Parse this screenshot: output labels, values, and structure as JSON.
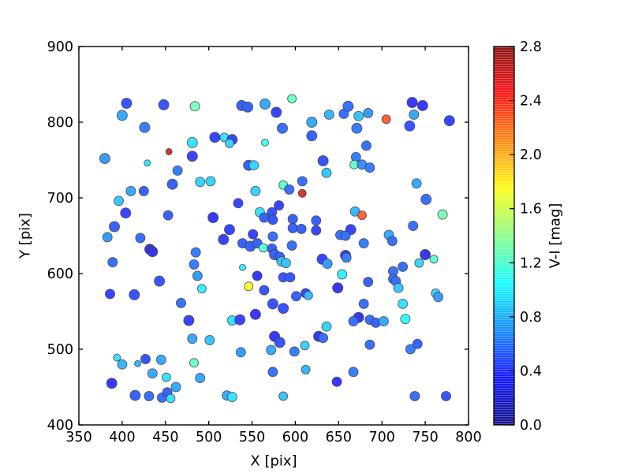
{
  "chart_data": {
    "type": "scatter",
    "title": "",
    "xlabel": "X [pix]",
    "ylabel": "Y [pix]",
    "xlim": [
      350,
      800
    ],
    "ylim": [
      400,
      900
    ],
    "xticks": [
      350,
      400,
      450,
      500,
      550,
      600,
      650,
      700,
      750,
      800
    ],
    "yticks": [
      400,
      500,
      600,
      700,
      800,
      900
    ],
    "grid": false,
    "legend": "none",
    "tick_direction": "in",
    "colorbar": {
      "label": "V-I [mag]",
      "vmin": 0.0,
      "vmax": 2.8,
      "ticks": [
        0.0,
        0.4,
        0.8,
        1.2,
        1.6,
        2.0,
        2.4,
        2.8
      ],
      "colormap": "jet",
      "position": "right"
    },
    "point_format": [
      "x_pix",
      "y_pix",
      "v_i_mag",
      "marker_diameter_px"
    ],
    "points": [
      [
        405,
        825,
        0.45,
        13
      ],
      [
        400,
        809,
        0.75,
        13
      ],
      [
        448,
        823,
        0.45,
        13
      ],
      [
        484,
        821,
        1.3,
        12
      ],
      [
        426,
        793,
        0.6,
        13
      ],
      [
        481,
        773,
        0.95,
        13
      ],
      [
        454,
        761,
        2.65,
        8
      ],
      [
        481,
        755,
        0.4,
        13
      ],
      [
        380,
        752,
        0.7,
        13
      ],
      [
        429,
        746,
        0.95,
        8
      ],
      [
        464,
        736,
        0.6,
        12
      ],
      [
        538,
        822,
        0.5,
        13
      ],
      [
        545,
        820,
        0.5,
        13
      ],
      [
        565,
        824,
        0.75,
        13
      ],
      [
        596,
        831,
        1.25,
        11
      ],
      [
        578,
        813,
        0.4,
        13
      ],
      [
        585,
        792,
        0.55,
        13
      ],
      [
        619,
        800,
        0.75,
        13
      ],
      [
        639,
        810,
        0.8,
        12
      ],
      [
        656,
        811,
        0.55,
        12
      ],
      [
        619,
        782,
        0.5,
        13
      ],
      [
        507,
        780,
        0.4,
        13
      ],
      [
        518,
        780,
        0.95,
        11
      ],
      [
        527,
        777,
        0.4,
        13
      ],
      [
        524,
        772,
        0.9,
        11
      ],
      [
        565,
        773,
        1.1,
        9
      ],
      [
        546,
        743,
        0.5,
        13
      ],
      [
        552,
        743,
        0.9,
        12
      ],
      [
        632,
        749,
        0.45,
        13
      ],
      [
        636,
        733,
        0.85,
        12
      ],
      [
        661,
        821,
        0.55,
        13
      ],
      [
        673,
        808,
        0.85,
        12
      ],
      [
        684,
        812,
        0.7,
        12
      ],
      [
        671,
        792,
        0.6,
        13
      ],
      [
        705,
        804,
        2.3,
        11
      ],
      [
        735,
        826,
        0.35,
        13
      ],
      [
        747,
        822,
        0.35,
        13
      ],
      [
        737,
        810,
        0.75,
        12
      ],
      [
        732,
        795,
        0.45,
        13
      ],
      [
        778,
        802,
        0.4,
        13
      ],
      [
        682,
        769,
        0.55,
        12
      ],
      [
        670,
        754,
        0.6,
        12
      ],
      [
        668,
        744,
        1.2,
        11
      ],
      [
        677,
        744,
        0.65,
        12
      ],
      [
        686,
        740,
        0.6,
        12
      ],
      [
        458,
        718,
        0.5,
        13
      ],
      [
        490,
        721,
        0.9,
        12
      ],
      [
        410,
        709,
        0.75,
        12
      ],
      [
        425,
        709,
        0.5,
        12
      ],
      [
        396,
        696,
        0.85,
        12
      ],
      [
        404,
        680,
        0.4,
        13
      ],
      [
        453,
        677,
        0.5,
        12
      ],
      [
        391,
        662,
        0.5,
        13
      ],
      [
        383,
        648,
        0.7,
        12
      ],
      [
        421,
        647,
        0.55,
        12
      ],
      [
        432,
        632,
        0.25,
        13
      ],
      [
        435,
        629,
        0.25,
        13
      ],
      [
        389,
        615,
        0.55,
        12
      ],
      [
        485,
        628,
        0.6,
        12
      ],
      [
        483,
        612,
        0.6,
        12
      ],
      [
        487,
        597,
        0.7,
        12
      ],
      [
        443,
        590,
        0.45,
        13
      ],
      [
        386,
        573,
        0.4,
        12
      ],
      [
        414,
        572,
        0.45,
        13
      ],
      [
        492,
        580,
        1.0,
        11
      ],
      [
        502,
        722,
        0.9,
        12
      ],
      [
        554,
        709,
        0.9,
        12
      ],
      [
        586,
        717,
        1.2,
        11
      ],
      [
        593,
        711,
        0.55,
        12
      ],
      [
        608,
        722,
        0.55,
        12
      ],
      [
        608,
        706,
        2.6,
        10
      ],
      [
        534,
        693,
        0.4,
        12
      ],
      [
        505,
        674,
        0.35,
        13
      ],
      [
        559,
        681,
        0.95,
        12
      ],
      [
        564,
        674,
        0.5,
        12
      ],
      [
        581,
        690,
        0.4,
        12
      ],
      [
        573,
        681,
        0.45,
        12
      ],
      [
        574,
        671,
        0.45,
        12
      ],
      [
        597,
        672,
        0.5,
        12
      ],
      [
        624,
        670,
        0.5,
        12
      ],
      [
        597,
        660,
        0.5,
        12
      ],
      [
        607,
        659,
        0.5,
        12
      ],
      [
        624,
        657,
        0.4,
        12
      ],
      [
        524,
        658,
        0.4,
        13
      ],
      [
        551,
        652,
        0.4,
        12
      ],
      [
        517,
        645,
        0.4,
        13
      ],
      [
        574,
        649,
        0.55,
        12
      ],
      [
        539,
        640,
        0.5,
        12
      ],
      [
        548,
        636,
        0.5,
        13
      ],
      [
        556,
        640,
        0.5,
        12
      ],
      [
        563,
        634,
        1.2,
        11
      ],
      [
        573,
        633,
        0.5,
        12
      ],
      [
        576,
        625,
        0.5,
        13
      ],
      [
        582,
        622,
        0.5,
        12
      ],
      [
        596,
        637,
        0.55,
        12
      ],
      [
        584,
        616,
        0.85,
        12
      ],
      [
        589,
        614,
        0.85,
        12
      ],
      [
        539,
        608,
        1.0,
        8
      ],
      [
        556,
        597,
        0.35,
        12
      ],
      [
        586,
        595,
        0.45,
        12
      ],
      [
        594,
        595,
        0.45,
        12
      ],
      [
        546,
        583,
        1.75,
        11
      ],
      [
        564,
        578,
        0.45,
        12
      ],
      [
        601,
        570,
        0.5,
        12
      ],
      [
        612,
        574,
        0.4,
        12
      ],
      [
        615,
        571,
        0.8,
        11
      ],
      [
        740,
        719,
        0.75,
        12
      ],
      [
        751,
        698,
        0.55,
        13
      ],
      [
        669,
        682,
        0.8,
        12
      ],
      [
        677,
        677,
        2.3,
        11
      ],
      [
        770,
        678,
        1.3,
        12
      ],
      [
        664,
        658,
        0.4,
        13
      ],
      [
        736,
        663,
        0.55,
        12
      ],
      [
        679,
        640,
        0.6,
        12
      ],
      [
        708,
        651,
        0.75,
        12
      ],
      [
        712,
        643,
        0.55,
        12
      ],
      [
        652,
        651,
        0.55,
        12
      ],
      [
        658,
        650,
        0.55,
        12
      ],
      [
        658,
        624,
        0.35,
        13
      ],
      [
        659,
        621,
        0.6,
        12
      ],
      [
        631,
        619,
        0.4,
        13
      ],
      [
        637,
        613,
        0.7,
        12
      ],
      [
        654,
        599,
        1.0,
        12
      ],
      [
        750,
        625,
        0.25,
        13
      ],
      [
        760,
        619,
        1.2,
        10
      ],
      [
        743,
        614,
        0.9,
        11
      ],
      [
        724,
        609,
        0.55,
        12
      ],
      [
        713,
        603,
        0.55,
        12
      ],
      [
        713,
        593,
        0.55,
        12
      ],
      [
        649,
        581,
        0.3,
        13
      ],
      [
        684,
        589,
        0.5,
        12
      ],
      [
        716,
        590,
        0.55,
        12
      ],
      [
        719,
        581,
        0.85,
        12
      ],
      [
        762,
        574,
        0.9,
        11
      ],
      [
        765,
        569,
        0.7,
        12
      ],
      [
        468,
        561,
        0.55,
        12
      ],
      [
        477,
        538,
        0.4,
        13
      ],
      [
        481,
        514,
        0.75,
        12
      ],
      [
        394,
        489,
        0.95,
        9
      ],
      [
        400,
        480,
        0.8,
        12
      ],
      [
        418,
        481,
        0.8,
        8
      ],
      [
        427,
        487,
        0.45,
        12
      ],
      [
        445,
        486,
        0.75,
        12
      ],
      [
        483,
        482,
        1.25,
        11
      ],
      [
        435,
        468,
        0.75,
        12
      ],
      [
        451,
        463,
        0.95,
        11
      ],
      [
        388,
        455,
        0.35,
        13
      ],
      [
        490,
        462,
        0.75,
        12
      ],
      [
        415,
        439,
        0.5,
        13
      ],
      [
        431,
        438,
        0.55,
        12
      ],
      [
        446,
        436,
        0.55,
        12
      ],
      [
        452,
        443,
        0.5,
        12
      ],
      [
        456,
        435,
        0.95,
        11
      ],
      [
        462,
        450,
        0.75,
        12
      ],
      [
        574,
        560,
        0.45,
        13
      ],
      [
        586,
        554,
        0.45,
        13
      ],
      [
        554,
        546,
        0.35,
        13
      ],
      [
        527,
        538,
        0.95,
        12
      ],
      [
        536,
        539,
        0.4,
        13
      ],
      [
        501,
        512,
        0.85,
        12
      ],
      [
        636,
        530,
        0.9,
        12
      ],
      [
        576,
        517,
        0.35,
        13
      ],
      [
        582,
        509,
        0.45,
        13
      ],
      [
        572,
        499,
        0.75,
        12
      ],
      [
        537,
        496,
        0.7,
        12
      ],
      [
        599,
        497,
        0.6,
        12
      ],
      [
        611,
        505,
        0.9,
        11
      ],
      [
        627,
        517,
        0.35,
        13
      ],
      [
        632,
        515,
        0.55,
        12
      ],
      [
        574,
        470,
        0.55,
        12
      ],
      [
        612,
        473,
        0.8,
        11
      ],
      [
        648,
        457,
        0.35,
        12
      ],
      [
        521,
        439,
        0.75,
        12
      ],
      [
        527,
        437,
        0.95,
        12
      ],
      [
        586,
        438,
        0.85,
        11
      ],
      [
        679,
        560,
        0.55,
        12
      ],
      [
        724,
        560,
        0.95,
        12
      ],
      [
        673,
        542,
        0.3,
        13
      ],
      [
        667,
        537,
        0.55,
        12
      ],
      [
        686,
        539,
        0.55,
        12
      ],
      [
        693,
        535,
        0.5,
        12
      ],
      [
        702,
        537,
        0.75,
        12
      ],
      [
        727,
        540,
        1.05,
        12
      ],
      [
        686,
        506,
        0.55,
        12
      ],
      [
        733,
        500,
        0.6,
        12
      ],
      [
        741,
        507,
        0.5,
        12
      ],
      [
        667,
        470,
        0.6,
        12
      ],
      [
        738,
        438,
        0.55,
        12
      ],
      [
        774,
        438,
        0.45,
        12
      ]
    ],
    "style": {
      "marker_edge_color": "#3c3c3c",
      "background_color": "#ffffff",
      "spine_color": "#000000"
    }
  }
}
